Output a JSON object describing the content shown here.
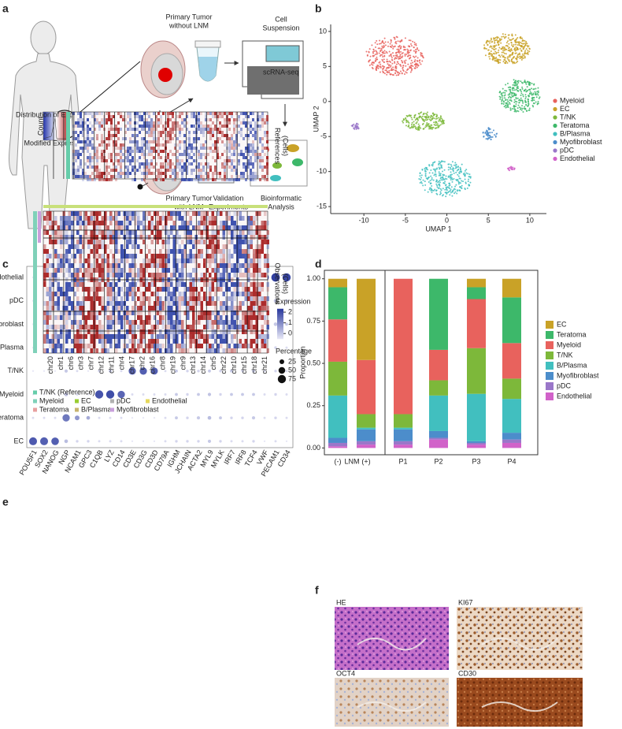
{
  "panel_labels": [
    "a",
    "b",
    "c",
    "d",
    "e",
    "f"
  ],
  "panel_a": {
    "primary_without": [
      "Primary Tumor",
      "without LNM"
    ],
    "cell_suspension": [
      "Cell",
      "Suspension"
    ],
    "scrna": "scRNA-seq",
    "primary_with": [
      "Primary Tumor",
      "with LNM"
    ],
    "validation": [
      "Validation",
      "Experiments"
    ],
    "bioinformatic": [
      "Bioinformatic",
      "Analysis"
    ]
  },
  "panel_b": {
    "type": "scatter",
    "xlabel": "UMAP 1",
    "ylabel": "UMAP 2",
    "xlim": [
      -14,
      12
    ],
    "ylim": [
      -16,
      11
    ],
    "xticks": [
      -10,
      -5,
      0,
      5,
      10
    ],
    "yticks": [
      10,
      5,
      0,
      -5,
      -10,
      -15
    ],
    "series": [
      {
        "name": "Myeloid",
        "color": "#e8625d",
        "x": -6.3,
        "y": 6.5
      },
      {
        "name": "EC",
        "color": "#c9a227",
        "x": 7.2,
        "y": 7.5
      },
      {
        "name": "T/NK",
        "color": "#7db83a",
        "x": -2.8,
        "y": -2.8
      },
      {
        "name": "Teratoma",
        "color": "#3db86a",
        "x": 8.8,
        "y": 0.8
      },
      {
        "name": "B/Plasma",
        "color": "#41bfbf",
        "x": -0.2,
        "y": -11
      },
      {
        "name": "Myofibroblast",
        "color": "#4c8dcb",
        "x": 5.2,
        "y": -4.6
      },
      {
        "name": "pDC",
        "color": "#9a77c9",
        "x": -11,
        "y": -3.6
      },
      {
        "name": "Endothelial",
        "color": "#d162c9",
        "x": 7.8,
        "y": -9.6
      }
    ]
  },
  "panel_c": {
    "type": "dot",
    "genes": [
      "POU5F1",
      "SOX2",
      "NANOG",
      "NGP",
      "NCAM1",
      "GPC3",
      "C1QB",
      "LYZ",
      "CD14",
      "CD3E",
      "CD3G",
      "CD3D",
      "CD79A",
      "IGHM",
      "JCHAIN",
      "ACTA2",
      "MYL9",
      "MYLK",
      "IRF7",
      "IRF8",
      "TCF4",
      "VWF",
      "PECAM1",
      "CD34"
    ],
    "rows": [
      "Endothelial",
      "pDC",
      "Myofibroblast",
      "B/Plasma",
      "T/NK",
      "Myeloid",
      "Teratoma",
      "EC"
    ],
    "percentage": [
      [
        4,
        4,
        4,
        30,
        8,
        4,
        6,
        6,
        6,
        4,
        4,
        4,
        6,
        12,
        12,
        20,
        45,
        30,
        15,
        12,
        45,
        80,
        80,
        75
      ],
      [
        4,
        4,
        4,
        15,
        6,
        4,
        6,
        12,
        8,
        6,
        6,
        6,
        18,
        45,
        40,
        10,
        20,
        15,
        70,
        70,
        65,
        10,
        15,
        10
      ],
      [
        4,
        4,
        4,
        20,
        6,
        6,
        6,
        6,
        6,
        4,
        4,
        4,
        6,
        12,
        12,
        75,
        70,
        60,
        10,
        10,
        15,
        10,
        15,
        10
      ],
      [
        4,
        4,
        4,
        10,
        6,
        4,
        6,
        8,
        6,
        6,
        6,
        6,
        65,
        70,
        70,
        8,
        10,
        8,
        10,
        10,
        12,
        6,
        8,
        6
      ],
      [
        4,
        4,
        4,
        12,
        6,
        4,
        8,
        10,
        6,
        60,
        60,
        55,
        6,
        10,
        8,
        8,
        10,
        8,
        10,
        8,
        10,
        6,
        8,
        6
      ],
      [
        4,
        4,
        4,
        15,
        6,
        4,
        75,
        75,
        60,
        6,
        6,
        6,
        6,
        10,
        8,
        10,
        12,
        8,
        10,
        10,
        10,
        6,
        8,
        6
      ],
      [
        6,
        6,
        6,
        60,
        25,
        15,
        6,
        6,
        6,
        4,
        4,
        4,
        6,
        10,
        8,
        12,
        15,
        10,
        8,
        8,
        12,
        6,
        8,
        6
      ],
      [
        70,
        70,
        65,
        15,
        8,
        8,
        6,
        6,
        6,
        4,
        4,
        4,
        6,
        8,
        8,
        8,
        12,
        8,
        6,
        6,
        8,
        4,
        6,
        4
      ]
    ],
    "expression": [
      [
        -0.5,
        -0.5,
        -0.5,
        0.4,
        -0.2,
        -0.5,
        -0.3,
        -0.3,
        -0.3,
        -0.5,
        -0.5,
        -0.5,
        -0.3,
        0,
        0,
        0.4,
        1.3,
        0.8,
        0.1,
        0,
        1.4,
        2.2,
        2.2,
        2.1
      ],
      [
        -0.5,
        -0.5,
        -0.5,
        0,
        -0.3,
        -0.5,
        -0.3,
        0,
        -0.2,
        -0.3,
        -0.3,
        -0.3,
        0.3,
        1.2,
        1.0,
        0,
        0.3,
        0,
        1.8,
        1.9,
        1.7,
        -0.1,
        0,
        -0.1
      ],
      [
        -0.5,
        -0.5,
        -0.5,
        0.2,
        -0.3,
        -0.3,
        -0.3,
        -0.3,
        -0.3,
        -0.5,
        -0.5,
        -0.5,
        -0.3,
        0,
        0,
        1.8,
        1.7,
        1.5,
        0,
        0,
        0.2,
        0,
        0,
        0
      ],
      [
        -0.5,
        -0.5,
        -0.5,
        0,
        -0.3,
        -0.5,
        -0.3,
        -0.2,
        -0.3,
        -0.3,
        -0.3,
        -0.3,
        1.8,
        1.9,
        1.9,
        -0.2,
        0,
        -0.2,
        0,
        0,
        0.1,
        -0.3,
        -0.2,
        -0.3
      ],
      [
        -0.5,
        -0.5,
        -0.5,
        0,
        -0.3,
        -0.5,
        -0.2,
        0,
        -0.3,
        1.6,
        1.7,
        1.7,
        -0.3,
        0,
        -0.2,
        -0.2,
        0,
        -0.2,
        0,
        -0.2,
        0,
        -0.3,
        -0.2,
        -0.3
      ],
      [
        -0.5,
        -0.5,
        -0.5,
        0.1,
        -0.3,
        -0.5,
        1.9,
        2.0,
        1.6,
        -0.3,
        -0.3,
        -0.3,
        -0.3,
        0,
        -0.2,
        0,
        0.1,
        -0.2,
        0,
        0,
        0,
        -0.3,
        -0.2,
        -0.3
      ],
      [
        -0.3,
        -0.3,
        -0.3,
        1.3,
        0.8,
        0.5,
        -0.3,
        -0.3,
        -0.3,
        -0.5,
        -0.5,
        -0.5,
        -0.3,
        0,
        -0.2,
        0,
        0.2,
        0,
        -0.2,
        -0.2,
        0,
        -0.3,
        -0.2,
        -0.3
      ],
      [
        1.8,
        1.7,
        1.7,
        0.2,
        -0.2,
        -0.2,
        -0.3,
        -0.3,
        -0.3,
        -0.5,
        -0.5,
        -0.5,
        -0.3,
        -0.2,
        -0.2,
        -0.2,
        0,
        -0.2,
        -0.3,
        -0.3,
        -0.2,
        -0.5,
        -0.3,
        -0.5
      ]
    ],
    "expression_title": "Expression",
    "expression_lim": [
      -0.5,
      2.3
    ],
    "expression_ticks": [
      2,
      1,
      0
    ],
    "colors": [
      "#e8e8f6",
      "#2b3a9e"
    ],
    "percentage_title": "Percentage",
    "percentage_lim": [
      0,
      100
    ],
    "percentage_ticks": [
      25,
      50,
      75
    ]
  },
  "panel_d": {
    "type": "bar",
    "stacked": true,
    "ylabel": "Proportion",
    "group_label": "LNM",
    "categories": [
      "(-)",
      "(+)",
      "P1",
      "P2",
      "P3",
      "P4"
    ],
    "ylim": [
      -0.04,
      1.05
    ],
    "yticks": [
      {
        "value": 0,
        "label": "0.00"
      },
      {
        "value": 0.25,
        "label": "0.25"
      },
      {
        "value": 0.5,
        "label": "0.50"
      },
      {
        "value": 0.75,
        "label": "0.75"
      },
      {
        "value": 1,
        "label": "1.00"
      }
    ],
    "series": [
      {
        "name": "EC",
        "color": "#c9a227",
        "values": [
          0.05,
          0.48,
          0,
          0,
          0.05,
          0.11
        ]
      },
      {
        "name": "Teratoma",
        "color": "#3db86a",
        "values": [
          0.19,
          0,
          0,
          0.42,
          0.07,
          0.27
        ]
      },
      {
        "name": "Myeloid",
        "color": "#e8625d",
        "values": [
          0.25,
          0.32,
          0.8,
          0.18,
          0.29,
          0.21
        ]
      },
      {
        "name": "T/NK",
        "color": "#7db83a",
        "values": [
          0.2,
          0.08,
          0.08,
          0.09,
          0.27,
          0.12
        ]
      },
      {
        "name": "B/Plasma",
        "color": "#41bfbf",
        "values": [
          0.25,
          0.01,
          0.01,
          0.21,
          0.28,
          0.2
        ]
      },
      {
        "name": "Myofibroblast",
        "color": "#4c8dcb",
        "values": [
          0.03,
          0.07,
          0.07,
          0.04,
          0.01,
          0.04
        ]
      },
      {
        "name": "pDC",
        "color": "#9a77c9",
        "values": [
          0.02,
          0.02,
          0.02,
          0.01,
          0.01,
          0.02
        ]
      },
      {
        "name": "Endothelial",
        "color": "#d162c9",
        "values": [
          0.01,
          0.02,
          0.02,
          0.05,
          0.02,
          0.03
        ]
      }
    ]
  },
  "panel_e": {
    "key_title": "Distribution of Expression",
    "key_ylabel": "Count",
    "key_xlabel": "Modified Expression",
    "references": [
      "References",
      "(Cells)"
    ],
    "observations": [
      "Observations",
      "(Cells)"
    ],
    "chromosomes": [
      "chr20",
      "chr1",
      "chr6",
      "chr3",
      "chr7",
      "chr12",
      "chr11",
      "chr4",
      "chr17",
      "chr2",
      "chr16",
      "chr8",
      "chr19",
      "chr9",
      "chr13",
      "chr14",
      "chr5",
      "chr22",
      "chr10",
      "chr15",
      "chr18",
      "chr21"
    ],
    "legend": [
      {
        "name": "T/NK (Reference)",
        "color": "#66cdaa"
      },
      {
        "name": "Myeloid",
        "color": "#7fd1b9"
      },
      {
        "name": "EC",
        "color": "#9acd32"
      },
      {
        "name": "pDC",
        "color": "#b0b0b0"
      },
      {
        "name": "Endothelial",
        "color": "#e6d85c"
      },
      {
        "name": "Teratoma",
        "color": "#e8a0a0"
      },
      {
        "name": "B/Plasma",
        "color": "#c8b46e"
      },
      {
        "name": "Myofibroblast",
        "color": "#c9a0dc"
      }
    ]
  },
  "panel_f": {
    "images": [
      "HE",
      "KI67",
      "OCT4",
      "CD30"
    ]
  }
}
